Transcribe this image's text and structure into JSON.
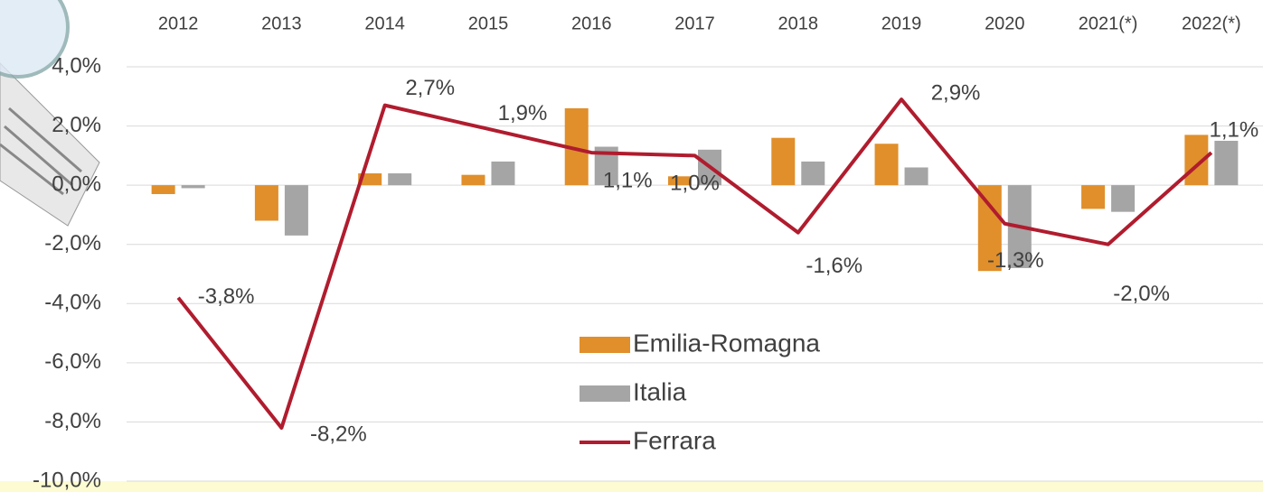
{
  "chart_data": {
    "type": "bar",
    "categories": [
      "2012",
      "2013",
      "2014",
      "2015",
      "2016",
      "2017",
      "2018",
      "2019",
      "2020",
      "2021(*)",
      "2022(*)"
    ],
    "series": [
      {
        "name": "Emilia-Romagna",
        "type": "bar",
        "color": "#e08f2b",
        "values": [
          -0.3,
          -1.2,
          0.4,
          0.35,
          2.6,
          0.3,
          1.6,
          1.4,
          -2.9,
          -0.8,
          1.7
        ]
      },
      {
        "name": "Italia",
        "type": "bar",
        "color": "#a5a5a5",
        "values": [
          -0.1,
          -1.7,
          0.4,
          0.8,
          1.3,
          1.2,
          0.8,
          0.6,
          -2.8,
          -0.9,
          1.5
        ]
      },
      {
        "name": "Ferrara",
        "type": "line",
        "color": "#b01c2e",
        "values": [
          -3.8,
          -8.2,
          2.7,
          1.9,
          1.1,
          1.0,
          -1.6,
          2.9,
          -1.3,
          -2.0,
          1.1
        ],
        "value_labels": [
          "-3,8%",
          "-8,2%",
          "2,7%",
          "1,9%",
          "1,1%",
          "1,0%",
          "-1,6%",
          "2,9%",
          "-1,3%",
          "-2,0%",
          "1,1%"
        ]
      }
    ],
    "ylim": [
      -10,
      4
    ],
    "yticks": [
      {
        "value": 4,
        "label": "4,0%"
      },
      {
        "value": 2,
        "label": "2,0%"
      },
      {
        "value": 0,
        "label": "0,0%"
      },
      {
        "value": -2,
        "label": "-2,0%"
      },
      {
        "value": -4,
        "label": "-4,0%"
      },
      {
        "value": -6,
        "label": "-6,0%"
      },
      {
        "value": -8,
        "label": "-8,0%"
      },
      {
        "value": -10,
        "label": "-10,0%"
      }
    ],
    "grid": true
  }
}
